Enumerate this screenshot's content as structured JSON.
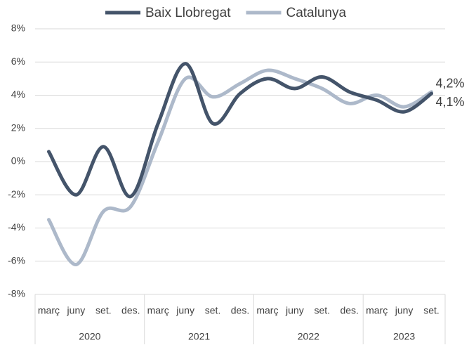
{
  "chart_data": {
    "type": "line",
    "categories": [
      "març",
      "juny",
      "set.",
      "des.",
      "març",
      "juny",
      "set.",
      "des.",
      "març",
      "juny",
      "set.",
      "des.",
      "març",
      "juny",
      "set."
    ],
    "groups": [
      {
        "label": "2020",
        "count": 4
      },
      {
        "label": "2021",
        "count": 4
      },
      {
        "label": "2022",
        "count": 4
      },
      {
        "label": "2023",
        "count": 3
      }
    ],
    "series": [
      {
        "name": "Baix Llobregat",
        "color": "#44546a",
        "values": [
          0.6,
          -2.0,
          0.9,
          -2.1,
          2.3,
          5.9,
          2.3,
          4.1,
          5.0,
          4.4,
          5.1,
          4.2,
          3.7,
          3.0,
          4.1
        ],
        "value_labels": [
          null,
          null,
          null,
          null,
          null,
          null,
          null,
          null,
          null,
          null,
          null,
          null,
          null,
          null,
          "4,1%"
        ]
      },
      {
        "name": "Catalunya",
        "color": "#adb9ca",
        "values": [
          -3.5,
          -6.2,
          -3.0,
          -2.7,
          1.2,
          5.0,
          3.9,
          4.7,
          5.5,
          5.0,
          4.4,
          3.5,
          4.0,
          3.3,
          4.2
        ],
        "value_labels": [
          null,
          null,
          null,
          null,
          null,
          null,
          null,
          null,
          null,
          null,
          null,
          null,
          null,
          null,
          "4,2%"
        ]
      }
    ],
    "ylim": [
      -8,
      8
    ],
    "yticks": [
      {
        "value": -8,
        "label": "-8%"
      },
      {
        "value": -6,
        "label": "-6%"
      },
      {
        "value": -4,
        "label": "-4%"
      },
      {
        "value": -2,
        "label": "-2%"
      },
      {
        "value": 0,
        "label": "0%"
      },
      {
        "value": 2,
        "label": "2%"
      },
      {
        "value": 4,
        "label": "4%"
      },
      {
        "value": 6,
        "label": "6%"
      },
      {
        "value": 8,
        "label": "8%"
      }
    ],
    "grid": true,
    "legend": "top"
  }
}
